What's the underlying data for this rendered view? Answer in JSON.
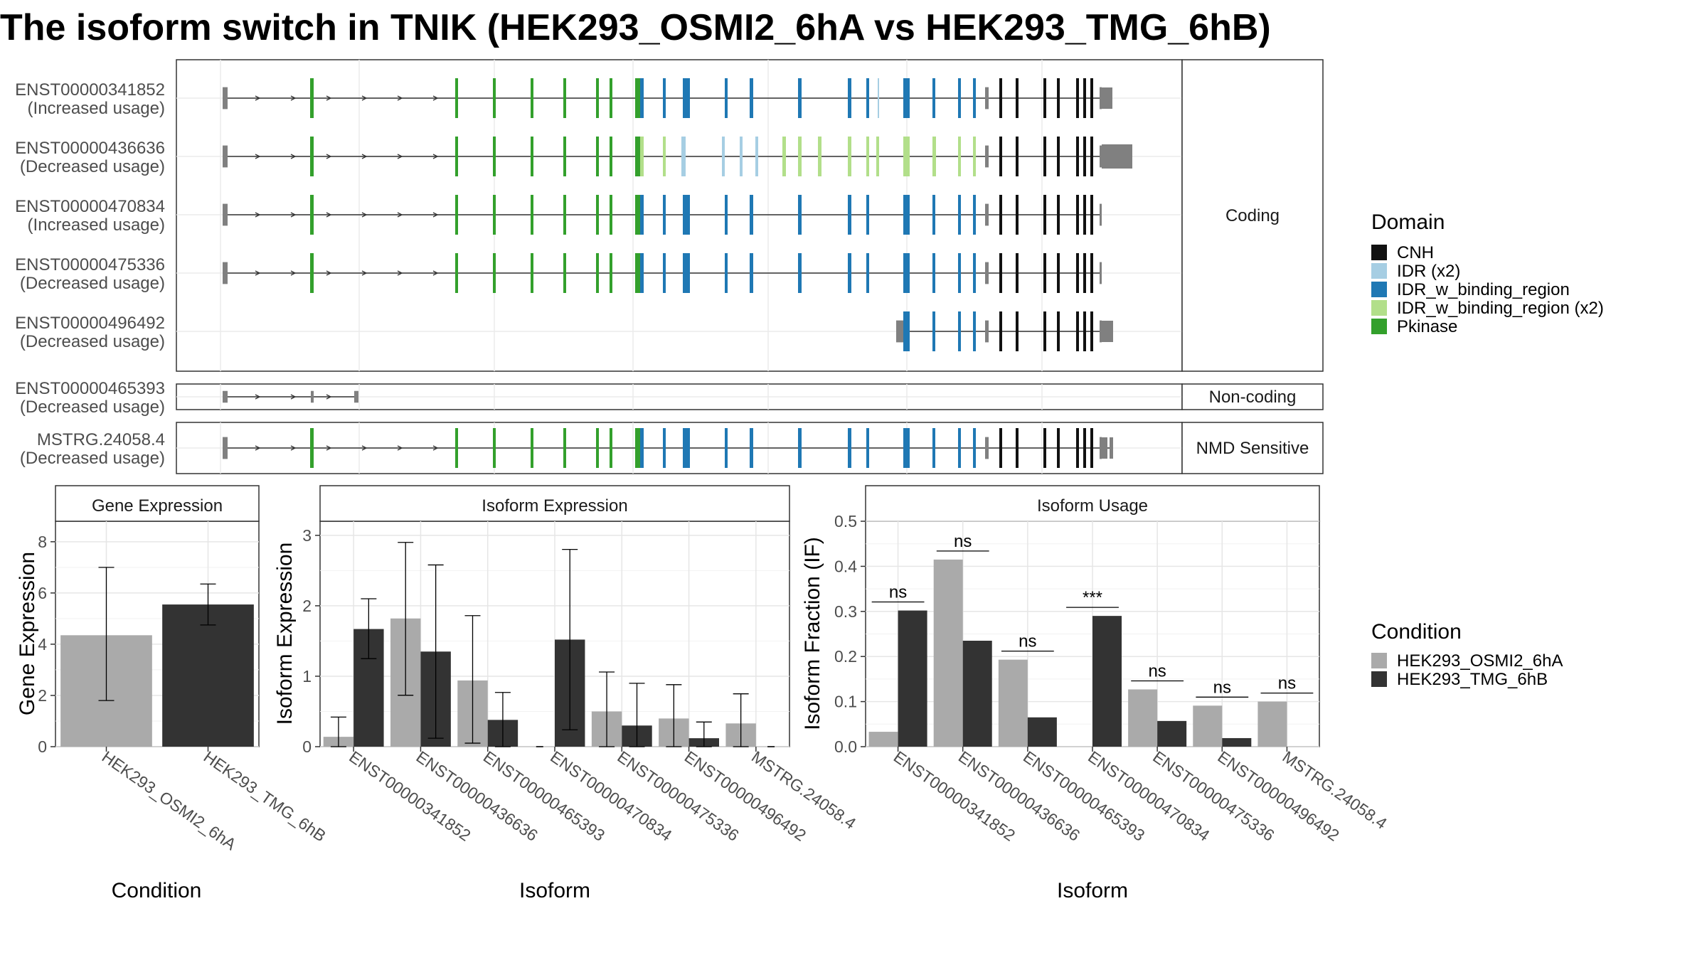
{
  "title": "The isoform switch in TNIK (HEK293_OSMI2_6hA vs HEK293_TMG_6hB)",
  "colors": {
    "CNH": "#111111",
    "IDR (x2)": "#a6cee3",
    "IDR_w_binding_region": "#1f78b4",
    "IDR_w_binding_region (x2)": "#b2df8a",
    "Pkinase": "#33a02c",
    "noncoding": "#808080",
    "cond_A": "#aaaaaa",
    "cond_B": "#333333"
  },
  "structure": {
    "groups": [
      {
        "label": "Coding",
        "isoforms": [
          {
            "id": "ENST00000341852",
            "usage": "(Increased usage)"
          },
          {
            "id": "ENST00000436636",
            "usage": "(Decreased usage)"
          },
          {
            "id": "ENST00000470834",
            "usage": "(Increased usage)"
          },
          {
            "id": "ENST00000475336",
            "usage": "(Decreased usage)"
          },
          {
            "id": "ENST00000496492",
            "usage": "(Decreased usage)"
          }
        ]
      },
      {
        "label": "Non-coding",
        "isoforms": [
          {
            "id": "ENST00000465393",
            "usage": "(Decreased usage)"
          }
        ]
      },
      {
        "label": "NMD Sensitive",
        "isoforms": [
          {
            "id": "MSTRG.24058.4",
            "usage": "(Decreased usage)"
          }
        ]
      }
    ]
  },
  "legend_domain": {
    "title": "Domain",
    "items": [
      "CNH",
      "IDR (x2)",
      "IDR_w_binding_region",
      "IDR_w_binding_region (x2)",
      "Pkinase"
    ]
  },
  "legend_condition": {
    "title": "Condition",
    "items": [
      "HEK293_OSMI2_6hA",
      "HEK293_TMG_6hB"
    ]
  },
  "chart_data": [
    {
      "type": "bar",
      "title": "Gene Expression",
      "xlabel": "Condition",
      "ylabel": "Gene Expression",
      "ylim": [
        0,
        8.8
      ],
      "yticks": [
        0,
        2,
        4,
        6,
        8
      ],
      "categories": [
        "HEK293_OSMI2_6hA",
        "HEK293_TMG_6hB"
      ],
      "values": [
        4.35,
        5.55
      ],
      "err_low": [
        1.8,
        4.75
      ],
      "err_high": [
        7.0,
        6.35
      ]
    },
    {
      "type": "bar",
      "title": "Isoform Expression",
      "xlabel": "Isoform",
      "ylabel": "Isoform Expression",
      "ylim": [
        0,
        3.2
      ],
      "yticks": [
        0,
        1,
        2,
        3
      ],
      "categories": [
        "ENST00000341852",
        "ENST00000436636",
        "ENST00000465393",
        "ENST00000470834",
        "ENST00000475336",
        "ENST00000496492",
        "MSTRG.24058.4"
      ],
      "series": [
        {
          "name": "HEK293_OSMI2_6hA",
          "values": [
            0.14,
            1.82,
            0.94,
            0.0,
            0.5,
            0.4,
            0.33
          ],
          "err_low": [
            0.0,
            0.73,
            0.05,
            0.0,
            0.0,
            0.0,
            0.0
          ],
          "err_high": [
            0.42,
            2.9,
            1.86,
            0.0,
            1.06,
            0.88,
            0.75
          ]
        },
        {
          "name": "HEK293_TMG_6hB",
          "values": [
            1.67,
            1.35,
            0.38,
            1.52,
            0.3,
            0.12,
            0.0
          ],
          "err_low": [
            1.25,
            0.12,
            0.0,
            0.24,
            0.0,
            0.0,
            0.0
          ],
          "err_high": [
            2.1,
            2.58,
            0.77,
            2.8,
            0.9,
            0.35,
            0.0
          ]
        }
      ]
    },
    {
      "type": "bar",
      "title": "Isoform Usage",
      "xlabel": "Isoform",
      "ylabel": "Isoform Fraction (IF)",
      "ylim": [
        0,
        0.5
      ],
      "yticks": [
        0.0,
        0.1,
        0.2,
        0.3,
        0.4,
        0.5
      ],
      "categories": [
        "ENST00000341852",
        "ENST00000436636",
        "ENST00000465393",
        "ENST00000470834",
        "ENST00000475336",
        "ENST00000496492",
        "MSTRG.24058.4"
      ],
      "series": [
        {
          "name": "HEK293_OSMI2_6hA",
          "values": [
            0.033,
            0.415,
            0.193,
            0.0,
            0.127,
            0.091,
            0.1
          ]
        },
        {
          "name": "HEK293_TMG_6hB",
          "values": [
            0.302,
            0.235,
            0.065,
            0.29,
            0.057,
            0.019,
            0.0
          ]
        }
      ],
      "significance": [
        "ns",
        "ns",
        "ns",
        "***",
        "ns",
        "ns",
        "ns"
      ]
    }
  ]
}
